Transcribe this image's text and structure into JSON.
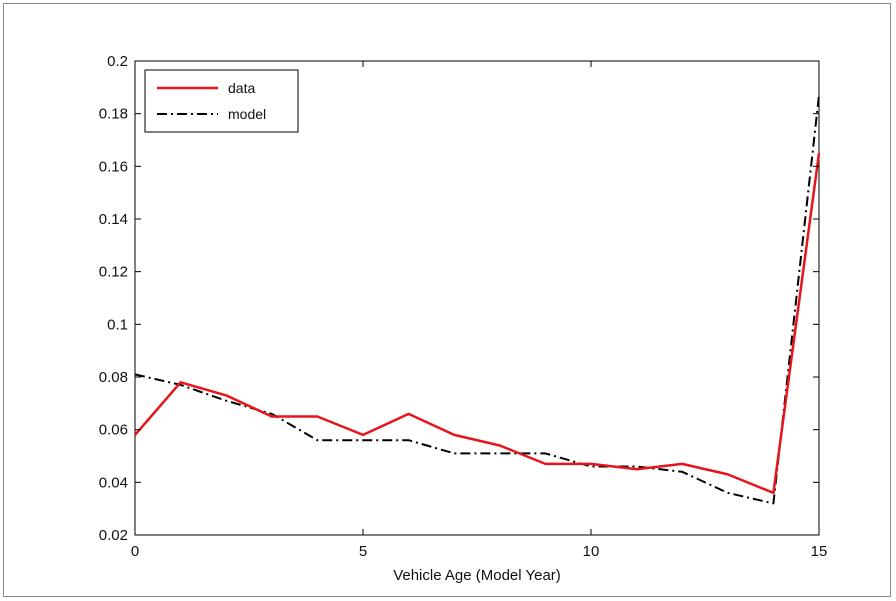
{
  "chart_data": {
    "type": "line",
    "title": "",
    "xlabel": "Vehicle Age (Model Year)",
    "ylabel": "",
    "xlim": [
      0,
      15
    ],
    "ylim": [
      0.02,
      0.2
    ],
    "xticks": [
      0,
      5,
      10,
      15
    ],
    "xtick_labels": [
      "0",
      "5",
      "10",
      "15"
    ],
    "yticks": [
      0.02,
      0.04,
      0.06,
      0.08,
      0.1,
      0.12,
      0.14,
      0.16,
      0.18,
      0.2
    ],
    "ytick_labels": [
      "0.02",
      "0.04",
      "0.06",
      "0.08",
      "0.1",
      "0.12",
      "0.14",
      "0.16",
      "0.18",
      "0.2"
    ],
    "grid": false,
    "legend_position": "top-left",
    "x": [
      0,
      1,
      2,
      3,
      4,
      5,
      6,
      7,
      8,
      9,
      10,
      11,
      12,
      13,
      14,
      15
    ],
    "series": [
      {
        "name": "data",
        "color": "#e8141b",
        "style": "solid",
        "values": [
          0.058,
          0.078,
          0.073,
          0.065,
          0.065,
          0.058,
          0.066,
          0.058,
          0.054,
          0.047,
          0.047,
          0.045,
          0.047,
          0.043,
          0.036,
          0.165
        ]
      },
      {
        "name": "model",
        "color": "#000000",
        "style": "dashdot",
        "values": [
          0.081,
          0.077,
          0.071,
          0.066,
          0.056,
          0.056,
          0.056,
          0.051,
          0.051,
          0.051,
          0.046,
          0.046,
          0.044,
          0.036,
          0.032,
          0.187
        ]
      }
    ]
  }
}
